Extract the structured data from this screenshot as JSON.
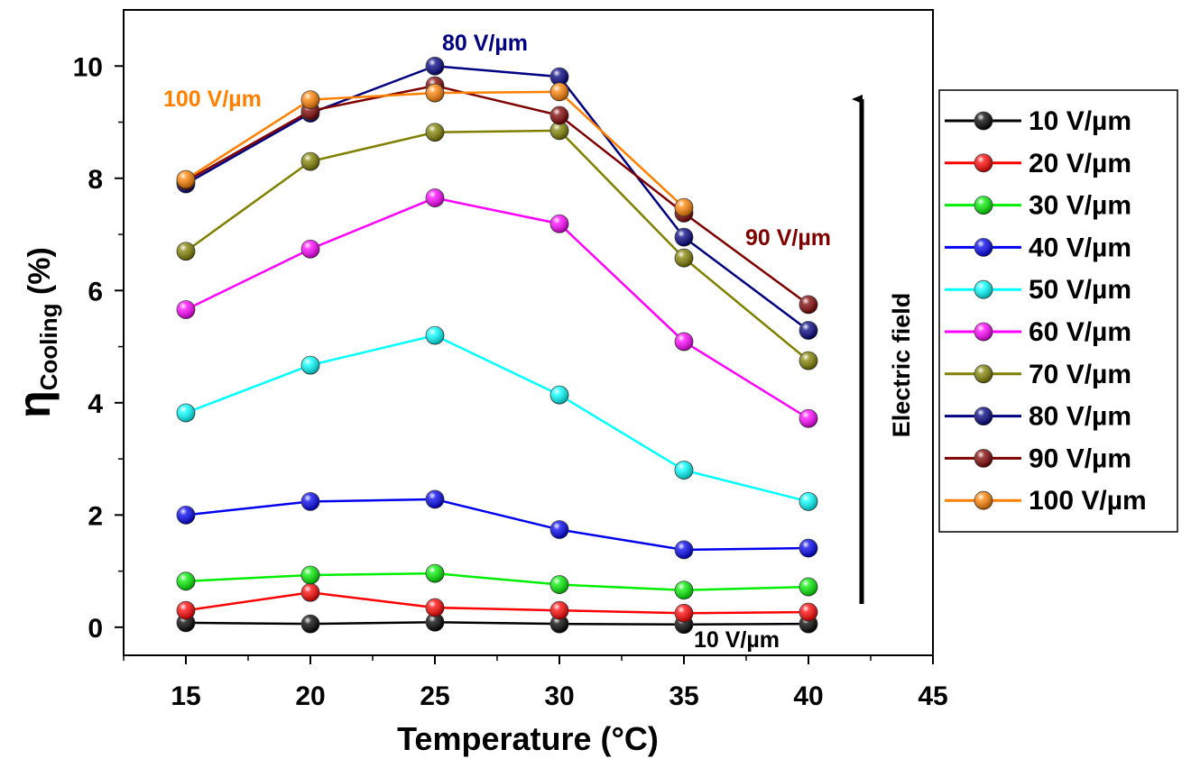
{
  "chart_data": {
    "type": "line",
    "title": "",
    "xlabel": "Temperature (°C)",
    "ylabel_main": "η",
    "ylabel_sub": "Cooling",
    "ylabel_unit": " (%)",
    "xlim": [
      12.5,
      45
    ],
    "ylim": [
      -0.5,
      11
    ],
    "xticks": [
      15,
      20,
      25,
      30,
      35,
      40,
      45
    ],
    "yticks": [
      0,
      2,
      4,
      6,
      8,
      10
    ],
    "x": [
      15,
      20,
      25,
      30,
      35,
      40
    ],
    "series": [
      {
        "name": "10 V/µm",
        "color": "#000000",
        "values": [
          0.08,
          0.06,
          0.09,
          0.06,
          0.05,
          0.06
        ]
      },
      {
        "name": "20 V/µm",
        "color": "#ff0000",
        "values": [
          0.3,
          0.62,
          0.35,
          0.3,
          0.25,
          0.27
        ]
      },
      {
        "name": "30 V/µm",
        "color": "#00ee00",
        "values": [
          0.82,
          0.93,
          0.96,
          0.76,
          0.66,
          0.72
        ]
      },
      {
        "name": "40 V/µm",
        "color": "#0000ee",
        "values": [
          2.0,
          2.24,
          2.28,
          1.74,
          1.38,
          1.41
        ]
      },
      {
        "name": "50 V/µm",
        "color": "#00ffff",
        "values": [
          3.82,
          4.67,
          5.2,
          4.14,
          2.8,
          2.24
        ]
      },
      {
        "name": "60 V/µm",
        "color": "#ff00ff",
        "values": [
          5.66,
          6.74,
          7.65,
          7.19,
          5.09,
          3.72
        ]
      },
      {
        "name": "70 V/µm",
        "color": "#808000",
        "values": [
          6.7,
          8.3,
          8.82,
          8.85,
          6.58,
          4.75
        ]
      },
      {
        "name": "80 V/µm",
        "color": "#000080",
        "values": [
          7.9,
          9.16,
          10.0,
          9.81,
          6.95,
          5.29
        ]
      },
      {
        "name": "90 V/µm",
        "color": "#800000",
        "values": [
          7.95,
          9.2,
          9.65,
          9.12,
          7.38,
          5.75
        ]
      },
      {
        "name": "100 V/µm",
        "color": "#ff8000",
        "values": [
          7.98,
          9.4,
          9.52,
          9.54,
          7.48,
          null
        ]
      }
    ],
    "annotations": [
      {
        "text": "80 V/µm",
        "color": "#000080"
      },
      {
        "text": "100 V/µm",
        "color": "#ff8000"
      },
      {
        "text": "90 V/µm",
        "color": "#800000"
      },
      {
        "text": "10 V/µm",
        "color": "#000000"
      }
    ],
    "arrow_label": "Electric field",
    "legend_position": "right"
  }
}
